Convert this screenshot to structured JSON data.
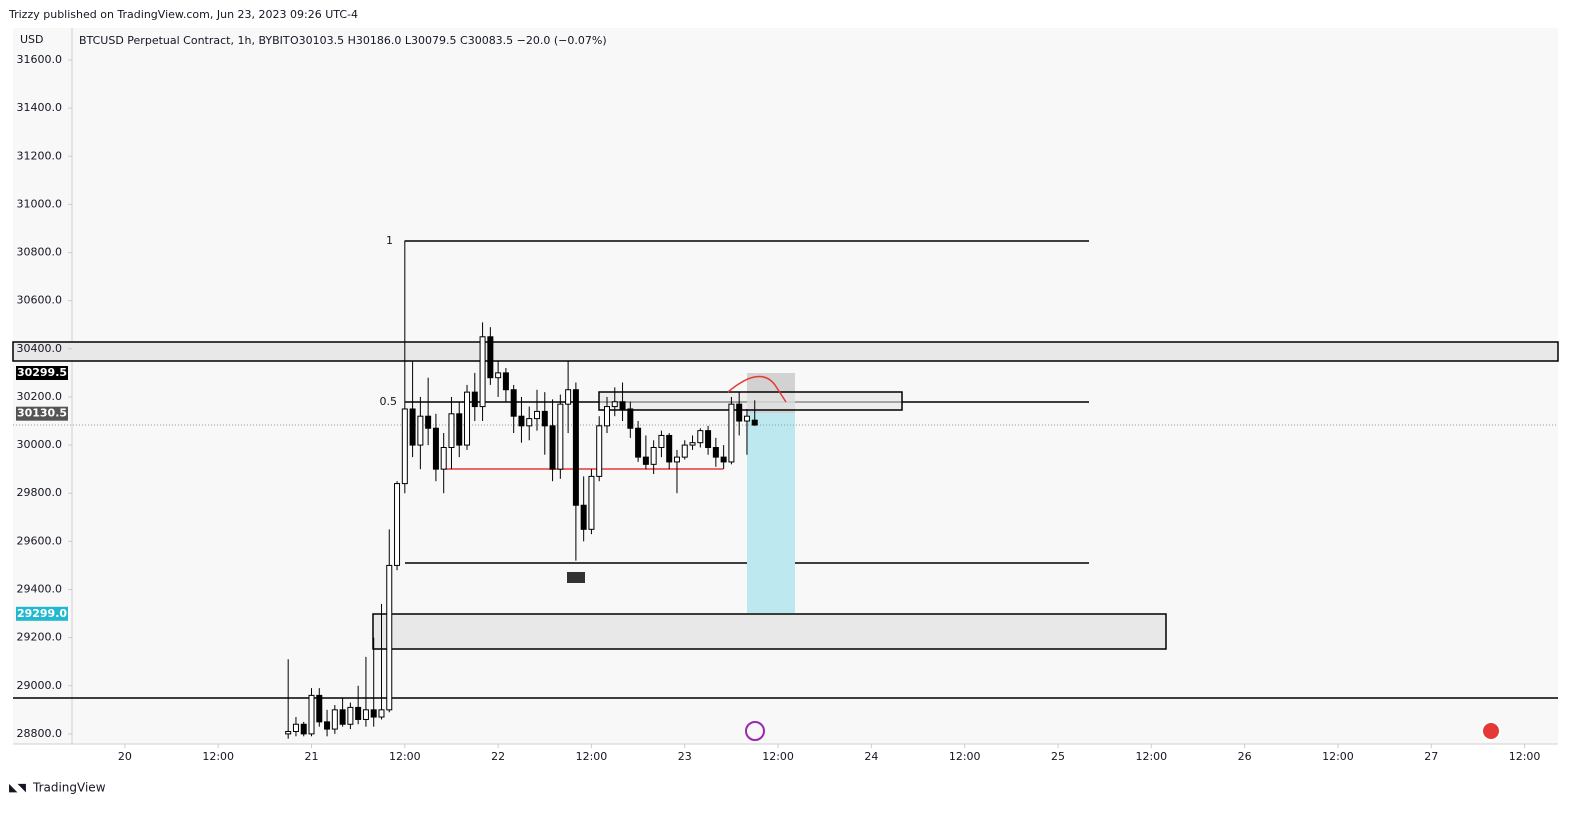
{
  "header": "Trizzy published on TradingView.com, Jun 23, 2023 09:26 UTC-4",
  "footer": "TradingView",
  "chart_data": {
    "type": "candlestick",
    "currency": "USD",
    "symbol": "BTCUSD Perpetual Contract, 1h, BYBIT",
    "ohlc_legend": "O30103.5 H30186.0 L30079.5 C30083.5 −20.0 (−0.07%)",
    "up_color": "#ffffff",
    "down_color": "#000000",
    "edge_color": "#000000",
    "x": [
      21,
      22,
      23,
      24,
      25,
      26,
      27,
      28,
      29,
      30,
      31,
      32,
      33,
      34,
      35,
      36,
      37,
      38,
      39,
      40,
      41,
      42,
      43,
      44,
      45,
      46,
      47,
      48,
      49,
      50,
      51,
      52,
      53,
      54,
      55,
      56,
      57,
      58,
      59,
      60,
      61,
      62,
      63,
      64,
      65,
      66,
      67,
      68,
      69,
      70,
      71,
      72,
      73,
      74,
      75,
      76,
      77,
      78,
      79,
      80,
      81
    ],
    "open": [
      28800,
      28810,
      28840,
      28800,
      28960,
      28850,
      28820,
      28900,
      28840,
      28910,
      28860,
      28900,
      28870,
      28900,
      29500,
      29840,
      30150,
      30000,
      30120,
      30070,
      29900,
      29990,
      30130,
      30000,
      30220,
      30160,
      30450,
      30280,
      30300,
      30230,
      30120,
      30080,
      30110,
      30140,
      30080,
      29900,
      30170,
      30230,
      29750,
      29650,
      29870,
      30080,
      30160,
      30180,
      30150,
      30070,
      29950,
      29920,
      29990,
      30040,
      29930,
      29950,
      30000,
      30010,
      30060,
      29990,
      29950,
      29930,
      30170,
      30100,
      30103.5
    ],
    "high": [
      29110,
      28870,
      28850,
      28990,
      28990,
      28900,
      28920,
      28950,
      28930,
      29000,
      29120,
      29200,
      29340,
      29650,
      29850,
      30850,
      30350,
      30200,
      30280,
      30130,
      30050,
      30200,
      30180,
      30250,
      30300,
      30510,
      30490,
      30350,
      30320,
      30250,
      30200,
      30160,
      30230,
      30220,
      30190,
      30210,
      30350,
      30260,
      29870,
      29900,
      30120,
      30200,
      30240,
      30260,
      30180,
      30100,
      30040,
      30020,
      30060,
      30050,
      29980,
      30020,
      30040,
      30070,
      30080,
      30030,
      30000,
      30200,
      30220,
      30150,
      30186
    ],
    "low": [
      28780,
      28790,
      28790,
      28790,
      28830,
      28790,
      28800,
      28830,
      28820,
      28840,
      28830,
      28830,
      28860,
      28890,
      29480,
      29800,
      29950,
      29900,
      30000,
      29850,
      29800,
      29900,
      29950,
      29980,
      30100,
      30100,
      30250,
      30200,
      30180,
      30050,
      30010,
      30020,
      30060,
      29960,
      29850,
      29860,
      30050,
      29520,
      29600,
      29630,
      29850,
      30050,
      30120,
      30100,
      30030,
      29930,
      29900,
      29880,
      29950,
      29900,
      29800,
      29940,
      29980,
      29990,
      29960,
      29910,
      29900,
      29920,
      30040,
      29960,
      30079.5
    ],
    "close": [
      28810,
      28840,
      28800,
      28960,
      28850,
      28820,
      28900,
      28840,
      28910,
      28860,
      28900,
      28870,
      28900,
      29500,
      29840,
      30150,
      30000,
      30120,
      30070,
      29900,
      29990,
      30130,
      30000,
      30220,
      30160,
      30450,
      30280,
      30300,
      30230,
      30120,
      30080,
      30110,
      30140,
      30080,
      29900,
      30170,
      30230,
      29750,
      29650,
      29870,
      30080,
      30160,
      30180,
      30150,
      30070,
      29950,
      29920,
      29990,
      30040,
      29930,
      29950,
      30000,
      30010,
      30060,
      29990,
      29950,
      29930,
      30170,
      30100,
      30120,
      30083.5
    ],
    "xlim": [
      -6.8,
      184.3
    ],
    "xticks": [
      {
        "value": 0,
        "label": "20"
      },
      {
        "value": 12,
        "label": "12:00"
      },
      {
        "value": 24,
        "label": "21"
      },
      {
        "value": 36,
        "label": "12:00"
      },
      {
        "value": 48,
        "label": "22"
      },
      {
        "value": 60,
        "label": "12:00"
      },
      {
        "value": 72,
        "label": "23"
      },
      {
        "value": 84,
        "label": "12:00"
      },
      {
        "value": 96,
        "label": "24"
      },
      {
        "value": 108,
        "label": "12:00"
      },
      {
        "value": 120,
        "label": "25"
      },
      {
        "value": 132,
        "label": "12:00"
      },
      {
        "value": 144,
        "label": "26"
      },
      {
        "value": 156,
        "label": "12:00"
      },
      {
        "value": 168,
        "label": "27"
      },
      {
        "value": 180,
        "label": "12:00"
      }
    ],
    "ylim": [
      28758,
      31733
    ],
    "yticks": [
      {
        "value": 28800,
        "label": "28800.0"
      },
      {
        "value": 29000,
        "label": "29000.0"
      },
      {
        "value": 29200,
        "label": "29200.0"
      },
      {
        "value": 29400,
        "label": "29400.0"
      },
      {
        "value": 29600,
        "label": "29600.0"
      },
      {
        "value": 29800,
        "label": "29800.0"
      },
      {
        "value": 30000,
        "label": "30000.0"
      },
      {
        "value": 30200,
        "label": "30200.0"
      },
      {
        "value": 30400,
        "label": "30400.0"
      },
      {
        "value": 30600,
        "label": "30600.0"
      },
      {
        "value": 30800,
        "label": "30800.0"
      },
      {
        "value": 31000,
        "label": "31000.0"
      },
      {
        "value": 31200,
        "label": "31200.0"
      },
      {
        "value": 31400,
        "label": "31400.0"
      },
      {
        "value": 31600,
        "label": "31600.0"
      }
    ],
    "price_tags": [
      {
        "value": 30299.5,
        "color": "#000000"
      },
      {
        "value": 30130.5,
        "color": "#555555"
      },
      {
        "value": {
          "value": 29299,
          "label": "29299.0"
        },
        "color": "#22b8cf"
      }
    ],
    "fib_labels": [
      "1",
      "0.5"
    ]
  }
}
